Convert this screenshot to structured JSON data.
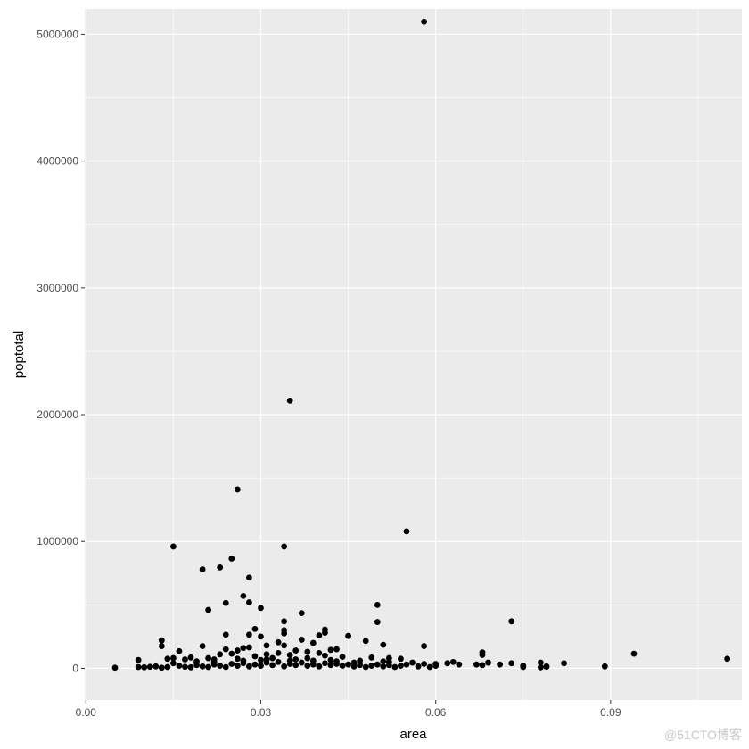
{
  "chart_data": {
    "type": "scatter",
    "title": "",
    "xlabel": "area",
    "ylabel": "poptotal",
    "xlim": [
      -0.0002,
      0.1125
    ],
    "ylim": [
      -250000,
      5200000
    ],
    "x_ticks": [
      0.0,
      0.03,
      0.06,
      0.09
    ],
    "x_tick_labels": [
      "0.00",
      "0.03",
      "0.06",
      "0.09"
    ],
    "y_ticks": [
      0,
      1000000,
      2000000,
      3000000,
      4000000,
      5000000
    ],
    "y_tick_labels": [
      "0",
      "1000000",
      "2000000",
      "3000000",
      "4000000",
      "5000000"
    ],
    "grid": true,
    "panel_background": "#ebebeb",
    "grid_color": "#ffffff",
    "point_color": "#000000",
    "points": [
      [
        0.058,
        5100000
      ],
      [
        0.035,
        2110000
      ],
      [
        0.026,
        1410000
      ],
      [
        0.055,
        1080000
      ],
      [
        0.015,
        960000
      ],
      [
        0.034,
        960000
      ],
      [
        0.025,
        865000
      ],
      [
        0.02,
        780000
      ],
      [
        0.023,
        795000
      ],
      [
        0.028,
        715000
      ],
      [
        0.027,
        570000
      ],
      [
        0.024,
        515000
      ],
      [
        0.028,
        520000
      ],
      [
        0.05,
        500000
      ],
      [
        0.021,
        460000
      ],
      [
        0.03,
        475000
      ],
      [
        0.037,
        435000
      ],
      [
        0.034,
        370000
      ],
      [
        0.05,
        365000
      ],
      [
        0.073,
        370000
      ],
      [
        0.029,
        310000
      ],
      [
        0.041,
        305000
      ],
      [
        0.034,
        300000
      ],
      [
        0.024,
        265000
      ],
      [
        0.028,
        265000
      ],
      [
        0.03,
        250000
      ],
      [
        0.045,
        255000
      ],
      [
        0.04,
        260000
      ],
      [
        0.034,
        275000
      ],
      [
        0.041,
        280000
      ],
      [
        0.013,
        220000
      ],
      [
        0.037,
        225000
      ],
      [
        0.048,
        215000
      ],
      [
        0.033,
        205000
      ],
      [
        0.039,
        200000
      ],
      [
        0.051,
        185000
      ],
      [
        0.058,
        175000
      ],
      [
        0.013,
        175000
      ],
      [
        0.02,
        175000
      ],
      [
        0.031,
        180000
      ],
      [
        0.034,
        180000
      ],
      [
        0.042,
        145000
      ],
      [
        0.043,
        150000
      ],
      [
        0.027,
        160000
      ],
      [
        0.028,
        165000
      ],
      [
        0.024,
        150000
      ],
      [
        0.026,
        140000
      ],
      [
        0.016,
        135000
      ],
      [
        0.036,
        140000
      ],
      [
        0.038,
        130000
      ],
      [
        0.04,
        120000
      ],
      [
        0.068,
        125000
      ],
      [
        0.068,
        105000
      ],
      [
        0.094,
        115000
      ],
      [
        0.023,
        110000
      ],
      [
        0.025,
        115000
      ],
      [
        0.031,
        110000
      ],
      [
        0.033,
        120000
      ],
      [
        0.035,
        105000
      ],
      [
        0.029,
        95000
      ],
      [
        0.041,
        100000
      ],
      [
        0.044,
        90000
      ],
      [
        0.049,
        85000
      ],
      [
        0.052,
        80000
      ],
      [
        0.054,
        75000
      ],
      [
        0.018,
        85000
      ],
      [
        0.021,
        80000
      ],
      [
        0.014,
        75000
      ],
      [
        0.015,
        80000
      ],
      [
        0.017,
        70000
      ],
      [
        0.022,
        70000
      ],
      [
        0.026,
        75000
      ],
      [
        0.03,
        65000
      ],
      [
        0.032,
        80000
      ],
      [
        0.036,
        70000
      ],
      [
        0.039,
        60000
      ],
      [
        0.042,
        65000
      ],
      [
        0.047,
        60000
      ],
      [
        0.051,
        55000
      ],
      [
        0.056,
        45000
      ],
      [
        0.009,
        65000
      ],
      [
        0.11,
        75000
      ],
      [
        0.063,
        50000
      ],
      [
        0.062,
        40000
      ],
      [
        0.069,
        45000
      ],
      [
        0.078,
        45000
      ],
      [
        0.082,
        40000
      ],
      [
        0.058,
        35000
      ],
      [
        0.06,
        35000
      ],
      [
        0.064,
        30000
      ],
      [
        0.067,
        30000
      ],
      [
        0.071,
        30000
      ],
      [
        0.073,
        40000
      ],
      [
        0.075,
        20000
      ],
      [
        0.079,
        15000
      ],
      [
        0.089,
        15000
      ],
      [
        0.005,
        5000
      ],
      [
        0.009,
        10000
      ],
      [
        0.01,
        8000
      ],
      [
        0.011,
        12000
      ],
      [
        0.012,
        15000
      ],
      [
        0.013,
        5000
      ],
      [
        0.014,
        10000
      ],
      [
        0.016,
        20000
      ],
      [
        0.017,
        12000
      ],
      [
        0.018,
        8000
      ],
      [
        0.019,
        25000
      ],
      [
        0.02,
        15000
      ],
      [
        0.021,
        10000
      ],
      [
        0.022,
        30000
      ],
      [
        0.023,
        20000
      ],
      [
        0.024,
        10000
      ],
      [
        0.025,
        35000
      ],
      [
        0.026,
        20000
      ],
      [
        0.027,
        40000
      ],
      [
        0.028,
        15000
      ],
      [
        0.029,
        30000
      ],
      [
        0.03,
        20000
      ],
      [
        0.031,
        45000
      ],
      [
        0.032,
        25000
      ],
      [
        0.033,
        50000
      ],
      [
        0.034,
        15000
      ],
      [
        0.035,
        35000
      ],
      [
        0.036,
        25000
      ],
      [
        0.037,
        45000
      ],
      [
        0.038,
        20000
      ],
      [
        0.039,
        30000
      ],
      [
        0.04,
        15000
      ],
      [
        0.041,
        40000
      ],
      [
        0.042,
        25000
      ],
      [
        0.043,
        35000
      ],
      [
        0.044,
        20000
      ],
      [
        0.045,
        30000
      ],
      [
        0.046,
        15000
      ],
      [
        0.047,
        25000
      ],
      [
        0.048,
        10000
      ],
      [
        0.049,
        20000
      ],
      [
        0.05,
        30000
      ],
      [
        0.051,
        15000
      ],
      [
        0.052,
        25000
      ],
      [
        0.053,
        10000
      ],
      [
        0.054,
        20000
      ],
      [
        0.055,
        30000
      ],
      [
        0.057,
        15000
      ],
      [
        0.059,
        10000
      ],
      [
        0.06,
        20000
      ],
      [
        0.068,
        25000
      ],
      [
        0.075,
        10000
      ],
      [
        0.078,
        8000
      ],
      [
        0.079,
        12000
      ],
      [
        0.015,
        40000
      ],
      [
        0.019,
        55000
      ],
      [
        0.022,
        50000
      ],
      [
        0.027,
        60000
      ],
      [
        0.031,
        70000
      ],
      [
        0.035,
        60000
      ],
      [
        0.038,
        80000
      ],
      [
        0.043,
        55000
      ],
      [
        0.046,
        45000
      ],
      [
        0.052,
        50000
      ]
    ]
  },
  "watermark": "@51CTO博客"
}
